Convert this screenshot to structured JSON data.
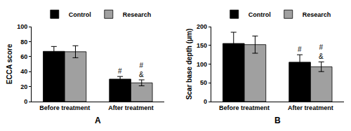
{
  "chart_data": [
    {
      "type": "bar",
      "title": "A",
      "y_label": "ECCA score",
      "categories": [
        "Before treatment",
        "After treatment"
      ],
      "ylim": [
        0,
        100
      ],
      "yticks": [
        0,
        20,
        40,
        60,
        80,
        100
      ],
      "legend": "top",
      "series": [
        {
          "name": "Control",
          "color": "#000000",
          "values": [
            67,
            30
          ],
          "error": [
            6.5,
            3.5
          ],
          "annotations": [
            null,
            "#"
          ]
        },
        {
          "name": "Research",
          "color": "#a0a0a0",
          "values": [
            66.5,
            25
          ],
          "error": [
            8,
            4
          ],
          "annotations": [
            null,
            "#\n&"
          ]
        }
      ]
    },
    {
      "type": "bar",
      "title": "B",
      "y_label": "Scar base depth (μm)",
      "categories": [
        "Before treatment",
        "After treatment"
      ],
      "ylim": [
        0,
        200
      ],
      "yticks": [
        0,
        50,
        100,
        150,
        200
      ],
      "legend": "top",
      "series": [
        {
          "name": "Control",
          "color": "#000000",
          "values": [
            155,
            105
          ],
          "error": [
            30,
            20
          ],
          "annotations": [
            null,
            "#"
          ]
        },
        {
          "name": "Research",
          "color": "#a0a0a0",
          "values": [
            152,
            93
          ],
          "error": [
            23,
            13
          ],
          "annotations": [
            null,
            "#\n&"
          ]
        }
      ]
    }
  ]
}
